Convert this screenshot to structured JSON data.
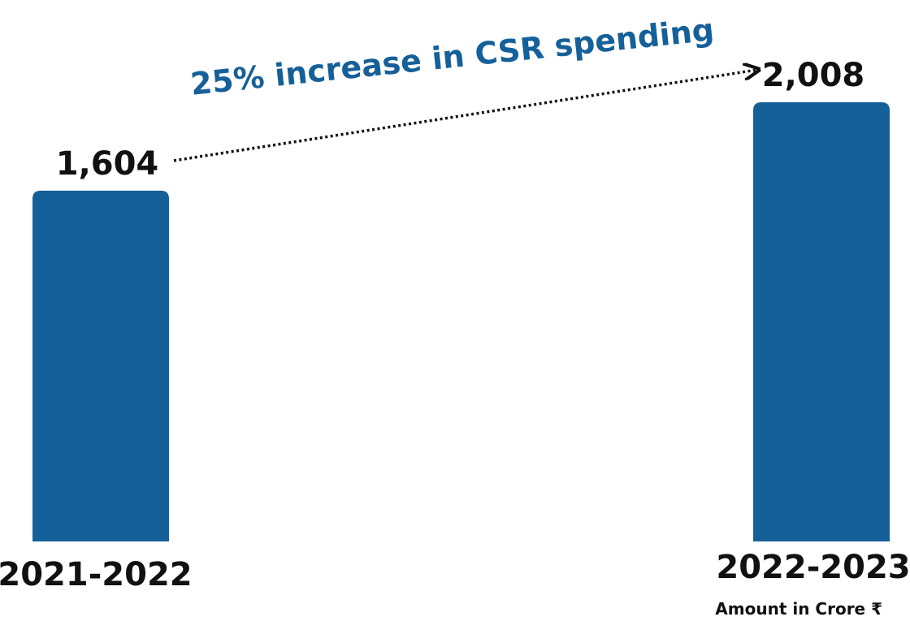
{
  "chart_data": {
    "type": "bar",
    "categories": [
      "2021-2022",
      "2022-2023"
    ],
    "values": [
      1604,
      2008
    ],
    "value_labels": [
      "1,604",
      "2,008"
    ],
    "annotation": "25% increase in CSR spending",
    "unit_note": "Amount in Crore ₹",
    "title": "",
    "xlabel": "",
    "ylabel": "",
    "ylim": [
      0,
      2008
    ],
    "grid": false,
    "legend": "none",
    "colors": {
      "bar": "#16609A",
      "annotation": "#16609A",
      "text": "#111111"
    }
  }
}
